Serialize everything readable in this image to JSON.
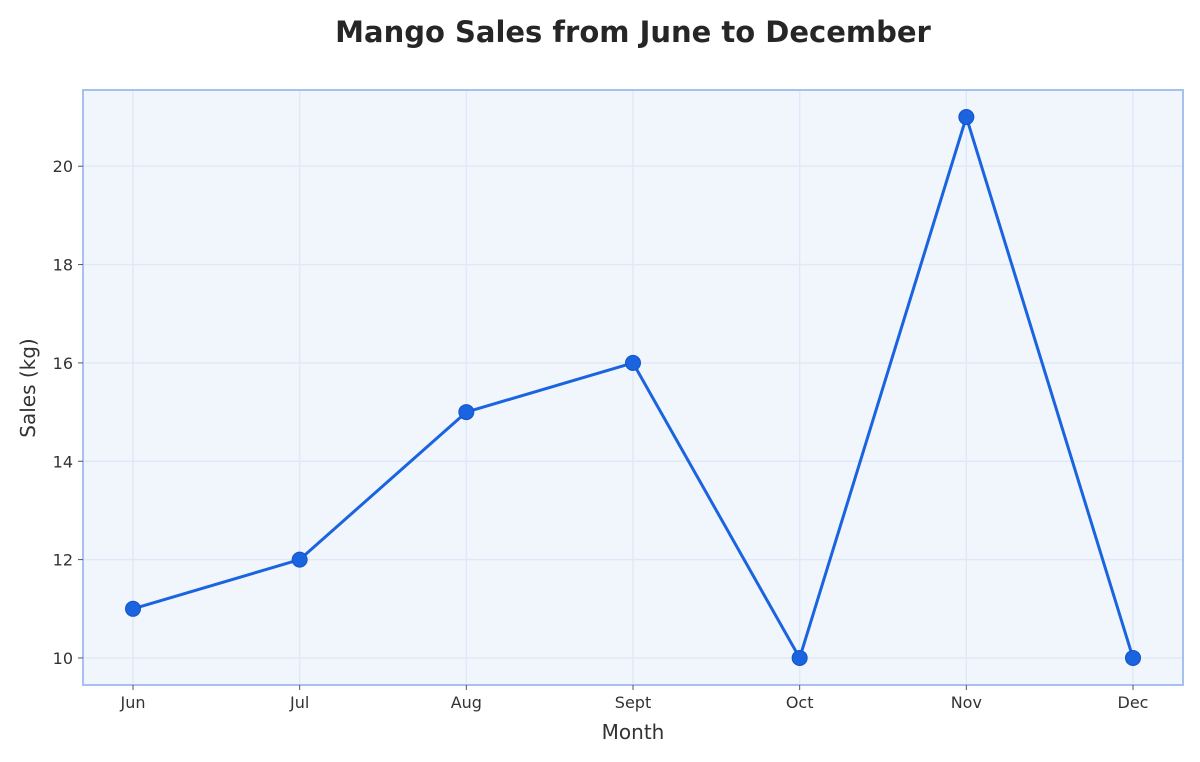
{
  "chart_data": {
    "type": "line",
    "title": "Mango Sales from June to December",
    "xlabel": "Month",
    "ylabel": "Sales (kg)",
    "categories": [
      "Jun",
      "Jul",
      "Aug",
      "Sept",
      "Oct",
      "Nov",
      "Dec"
    ],
    "series": [
      {
        "values": [
          11,
          12,
          15,
          16,
          10,
          21,
          10
        ],
        "color": "#1a64e0"
      }
    ],
    "ylim": [
      9.45,
      21.55
    ],
    "yticks": [
      10,
      12,
      14,
      16,
      18,
      20
    ],
    "grid": true,
    "legend": "none",
    "plot_background": "#f1f6fd",
    "plot_border": "#a6c0f2"
  }
}
